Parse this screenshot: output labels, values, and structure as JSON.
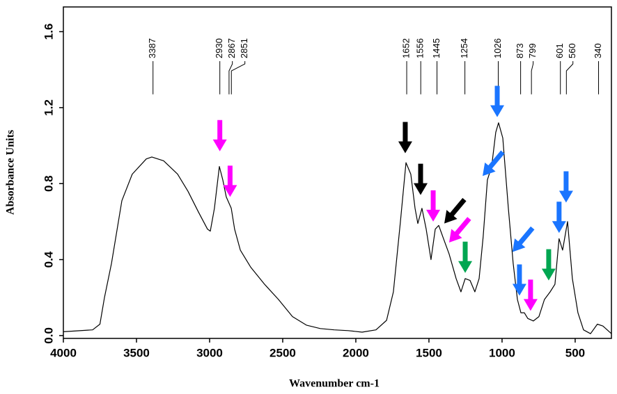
{
  "chart_data": {
    "type": "line",
    "xlabel": "Wavenumber cm-1",
    "ylabel": "Absorbance Units",
    "xlim": [
      4000,
      252
    ],
    "ylim": [
      -0.015,
      1.73
    ],
    "xticks": [
      4000,
      3500,
      3000,
      2500,
      2000,
      1500,
      1000,
      500
    ],
    "yticks": [
      {
        "value": 0,
        "label": "0.0"
      },
      0.4,
      0.8,
      1.2,
      1.6
    ],
    "grid": false,
    "series": [
      {
        "name": null,
        "color": "#000000",
        "x": [
          4000,
          3800,
          3750,
          3719,
          3671,
          3600,
          3529,
          3433,
          3395,
          3314,
          3219,
          3148,
          3076,
          3014,
          2995,
          2967,
          2933,
          2910,
          2886,
          2852,
          2829,
          2790,
          2719,
          2624,
          2529,
          2433,
          2338,
          2243,
          2148,
          2052,
          1957,
          1862,
          1790,
          1743,
          1695,
          1657,
          1624,
          1595,
          1576,
          1548,
          1519,
          1486,
          1457,
          1433,
          1405,
          1362,
          1314,
          1281,
          1252,
          1219,
          1186,
          1157,
          1129,
          1100,
          1071,
          1043,
          1024,
          995,
          957,
          924,
          895,
          871,
          848,
          824,
          786,
          748,
          710,
          671,
          638,
          610,
          586,
          552,
          519,
          481,
          443,
          395,
          348,
          310,
          252
        ],
        "values": [
          0.02,
          0.03,
          0.06,
          0.2,
          0.38,
          0.71,
          0.85,
          0.93,
          0.94,
          0.92,
          0.85,
          0.76,
          0.65,
          0.56,
          0.55,
          0.67,
          0.89,
          0.82,
          0.73,
          0.67,
          0.56,
          0.45,
          0.36,
          0.27,
          0.19,
          0.1,
          0.055,
          0.037,
          0.03,
          0.026,
          0.018,
          0.03,
          0.08,
          0.23,
          0.6,
          0.91,
          0.85,
          0.67,
          0.59,
          0.67,
          0.56,
          0.4,
          0.56,
          0.58,
          0.52,
          0.43,
          0.3,
          0.23,
          0.3,
          0.29,
          0.23,
          0.3,
          0.52,
          0.82,
          0.89,
          1.07,
          1.12,
          1.04,
          0.67,
          0.38,
          0.19,
          0.12,
          0.12,
          0.09,
          0.077,
          0.1,
          0.19,
          0.23,
          0.27,
          0.51,
          0.45,
          0.6,
          0.3,
          0.12,
          0.03,
          0.01,
          0.06,
          0.05,
          0.01
        ]
      }
    ],
    "peak_labels": [
      3387,
      2930,
      2867,
      2851,
      1652,
      1556,
      1445,
      1254,
      1026,
      873,
      799,
      601,
      560,
      340
    ],
    "arrows": [
      {
        "x": 2930,
        "y": 0.97,
        "color": "#ff00ff",
        "direction": "down"
      },
      {
        "x": 2860,
        "y": 0.73,
        "color": "#ff00ff",
        "direction": "down"
      },
      {
        "x": 1662,
        "y": 0.96,
        "color": "#000000",
        "direction": "down"
      },
      {
        "x": 1557,
        "y": 0.74,
        "color": "#000000",
        "direction": "down"
      },
      {
        "x": 1471,
        "y": 0.6,
        "color": "#ff00ff",
        "direction": "down"
      },
      {
        "x": 1395,
        "y": 0.59,
        "color": "#000000",
        "direction": "down-left"
      },
      {
        "x": 1362,
        "y": 0.49,
        "color": "#ff00ff",
        "direction": "down-left"
      },
      {
        "x": 1252,
        "y": 0.33,
        "color": "#00a651",
        "direction": "down"
      },
      {
        "x": 1133,
        "y": 0.84,
        "color": "#1a75ff",
        "direction": "down-left"
      },
      {
        "x": 1033,
        "y": 1.15,
        "color": "#1a75ff",
        "direction": "down"
      },
      {
        "x": 929,
        "y": 0.44,
        "color": "#1a75ff",
        "direction": "down-left"
      },
      {
        "x": 881,
        "y": 0.21,
        "color": "#1a75ff",
        "direction": "down"
      },
      {
        "x": 805,
        "y": 0.13,
        "color": "#ff00ff",
        "direction": "down"
      },
      {
        "x": 681,
        "y": 0.29,
        "color": "#00a651",
        "direction": "down"
      },
      {
        "x": 610,
        "y": 0.54,
        "color": "#1a75ff",
        "direction": "down"
      },
      {
        "x": 562,
        "y": 0.7,
        "color": "#1a75ff",
        "direction": "down"
      }
    ]
  }
}
